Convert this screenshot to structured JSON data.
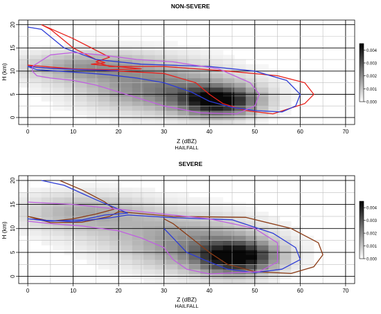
{
  "chart_data": [
    {
      "type": "heatmap",
      "title": "NON-SEVERE",
      "xlabel": "Z (dBZ)",
      "xsublabel": "HAILFALL",
      "ylabel": "H (km)",
      "xlim": [
        -2,
        72
      ],
      "ylim": [
        -1.5,
        21
      ],
      "xticks": [
        0,
        10,
        20,
        30,
        40,
        50,
        60,
        70
      ],
      "yticks": [
        0,
        5,
        10,
        15,
        20
      ],
      "grid": true,
      "colorbar": {
        "ticks": [
          "0.000",
          "0.001",
          "0.002",
          "0.003",
          "0.004"
        ],
        "max": 0.0045,
        "colors": [
          "#ffffff",
          "#000000"
        ]
      },
      "density_blobs": [
        {
          "x": 42,
          "y": 3.5,
          "sx": 5.5,
          "sy": 2.0,
          "w": 1.0
        },
        {
          "x": 32,
          "y": 5.5,
          "sx": 11,
          "sy": 3.0,
          "w": 0.38
        },
        {
          "x": 12,
          "y": 11,
          "sx": 9,
          "sy": 2.0,
          "w": 0.28
        },
        {
          "x": 24,
          "y": 9,
          "sx": 11,
          "sy": 3.5,
          "w": 0.18
        }
      ],
      "contours": [
        {
          "color": "#e8201a",
          "points": [
            [
              3,
              20
            ],
            [
              10,
              17
            ],
            [
              16,
              14
            ],
            [
              18,
              13
            ],
            [
              15,
              12
            ],
            [
              18,
              11
            ],
            [
              30,
              11
            ],
            [
              44,
              10
            ],
            [
              55,
              9
            ],
            [
              61,
              7.5
            ],
            [
              63,
              5
            ],
            [
              61,
              3
            ],
            [
              54,
              0.8
            ],
            [
              48,
              1.5
            ],
            [
              43,
              3
            ],
            [
              40,
              5
            ],
            [
              37,
              7.5
            ],
            [
              30,
              9.5
            ],
            [
              20,
              10
            ],
            [
              10,
              10.5
            ],
            [
              0,
              11.3
            ],
            [
              2,
              10.8
            ],
            [
              8,
              10.5
            ],
            [
              18,
              10.3
            ],
            [
              25,
              10.5
            ],
            [
              14,
              11.5
            ],
            [
              17,
              11.8
            ],
            [
              15,
              12.5
            ],
            [
              10,
              15
            ],
            [
              5,
              19
            ],
            [
              3,
              20
            ]
          ]
        },
        {
          "color": "#2c3bd6",
          "points": [
            [
              0,
              19.5
            ],
            [
              3,
              19
            ],
            [
              8,
              15
            ],
            [
              15,
              12.5
            ],
            [
              25,
              11.5
            ],
            [
              40,
              11
            ],
            [
              50,
              10
            ],
            [
              57,
              8
            ],
            [
              60,
              5
            ],
            [
              59,
              2.5
            ],
            [
              56,
              1.2
            ],
            [
              50,
              1.5
            ],
            [
              45,
              2.2
            ],
            [
              40,
              3.5
            ],
            [
              36,
              5.5
            ],
            [
              30,
              7.5
            ],
            [
              24,
              8.5
            ],
            [
              18,
              9.2
            ],
            [
              10,
              9.8
            ],
            [
              2,
              10.3
            ],
            [
              0,
              11
            ],
            [
              5,
              10.6
            ],
            [
              12,
              10.3
            ],
            [
              20,
              10.1
            ]
          ]
        },
        {
          "color": "#c060e0",
          "points": [
            [
              1,
              11
            ],
            [
              5,
              13.5
            ],
            [
              10,
              14
            ],
            [
              16,
              13.5
            ],
            [
              24,
              12.5
            ],
            [
              32,
              12
            ],
            [
              42,
              10.5
            ],
            [
              49,
              7.5
            ],
            [
              51,
              5
            ],
            [
              50,
              2.5
            ],
            [
              46,
              0.8
            ],
            [
              38,
              1
            ],
            [
              30,
              2.5
            ],
            [
              25,
              4
            ],
            [
              20,
              5.5
            ],
            [
              15,
              7
            ],
            [
              10,
              8
            ],
            [
              5,
              8.5
            ],
            [
              2,
              9
            ],
            [
              1,
              10
            ],
            [
              1,
              11
            ]
          ]
        }
      ]
    },
    {
      "type": "heatmap",
      "title": "SEVERE",
      "xlabel": "Z (dBZ)",
      "xsublabel": "HAILFALL",
      "ylabel": "H (km)",
      "xlim": [
        -2,
        72
      ],
      "ylim": [
        -1.5,
        21
      ],
      "xticks": [
        0,
        10,
        20,
        30,
        40,
        50,
        60,
        70
      ],
      "yticks": [
        0,
        5,
        10,
        15,
        20
      ],
      "grid": true,
      "colorbar": {
        "ticks": [
          "0.000",
          "0.001",
          "0.002",
          "0.003",
          "0.004"
        ],
        "max": 0.0045,
        "colors": [
          "#ffffff",
          "#000000"
        ]
      },
      "density_blobs": [
        {
          "x": 46,
          "y": 4.0,
          "sx": 5.5,
          "sy": 2.2,
          "w": 1.0
        },
        {
          "x": 38,
          "y": 6.0,
          "sx": 10,
          "sy": 3.5,
          "w": 0.35
        },
        {
          "x": 12,
          "y": 13.5,
          "sx": 9,
          "sy": 2.5,
          "w": 0.25
        },
        {
          "x": 26,
          "y": 10,
          "sx": 12,
          "sy": 3.5,
          "w": 0.15
        }
      ],
      "contours": [
        {
          "color": "#8a3a14",
          "points": [
            [
              7,
              20
            ],
            [
              12,
              18
            ],
            [
              17,
              15.5
            ],
            [
              19,
              14
            ],
            [
              15,
              13
            ],
            [
              10,
              12
            ],
            [
              5,
              11.5
            ],
            [
              0,
              12.5
            ],
            [
              5,
              11.2
            ],
            [
              12,
              11.3
            ],
            [
              18,
              12.5
            ],
            [
              20,
              13.5
            ],
            [
              32,
              12.5
            ],
            [
              48,
              12.3
            ],
            [
              58,
              10
            ],
            [
              64,
              7
            ],
            [
              65,
              4.5
            ],
            [
              63,
              2
            ],
            [
              58,
              0.6
            ],
            [
              50,
              1
            ],
            [
              44,
              2.5
            ],
            [
              40,
              5
            ],
            [
              36,
              8
            ],
            [
              32,
              11
            ],
            [
              30,
              12
            ]
          ]
        },
        {
          "color": "#2c3bd6",
          "points": [
            [
              3,
              20
            ],
            [
              8,
              19
            ],
            [
              15,
              16
            ],
            [
              20,
              14
            ],
            [
              22,
              13.2
            ],
            [
              17,
              12.8
            ],
            [
              12,
              11.8
            ],
            [
              5,
              11.5
            ],
            [
              0,
              12
            ],
            [
              4,
              11.7
            ],
            [
              10,
              11.4
            ],
            [
              18,
              12.2
            ],
            [
              22,
              12.8
            ],
            [
              33,
              12.2
            ],
            [
              45,
              11.8
            ],
            [
              54,
              9
            ],
            [
              59,
              6
            ],
            [
              60,
              3.5
            ],
            [
              56,
              1.5
            ],
            [
              50,
              0.8
            ],
            [
              44,
              1.5
            ],
            [
              40,
              3
            ],
            [
              35,
              5
            ],
            [
              32,
              8
            ],
            [
              30,
              10
            ]
          ]
        },
        {
          "color": "#c060e0",
          "points": [
            [
              0,
              15.5
            ],
            [
              10,
              15
            ],
            [
              20,
              14
            ],
            [
              30,
              13
            ],
            [
              40,
              12
            ],
            [
              50,
              10
            ],
            [
              55,
              7
            ],
            [
              55,
              3
            ],
            [
              51,
              1
            ],
            [
              40,
              0.5
            ],
            [
              35,
              1.5
            ],
            [
              32,
              3.5
            ],
            [
              30,
              6
            ],
            [
              25,
              8
            ],
            [
              20,
              9.5
            ],
            [
              12,
              10.5
            ],
            [
              5,
              11
            ],
            [
              0,
              11.5
            ]
          ]
        }
      ]
    }
  ]
}
